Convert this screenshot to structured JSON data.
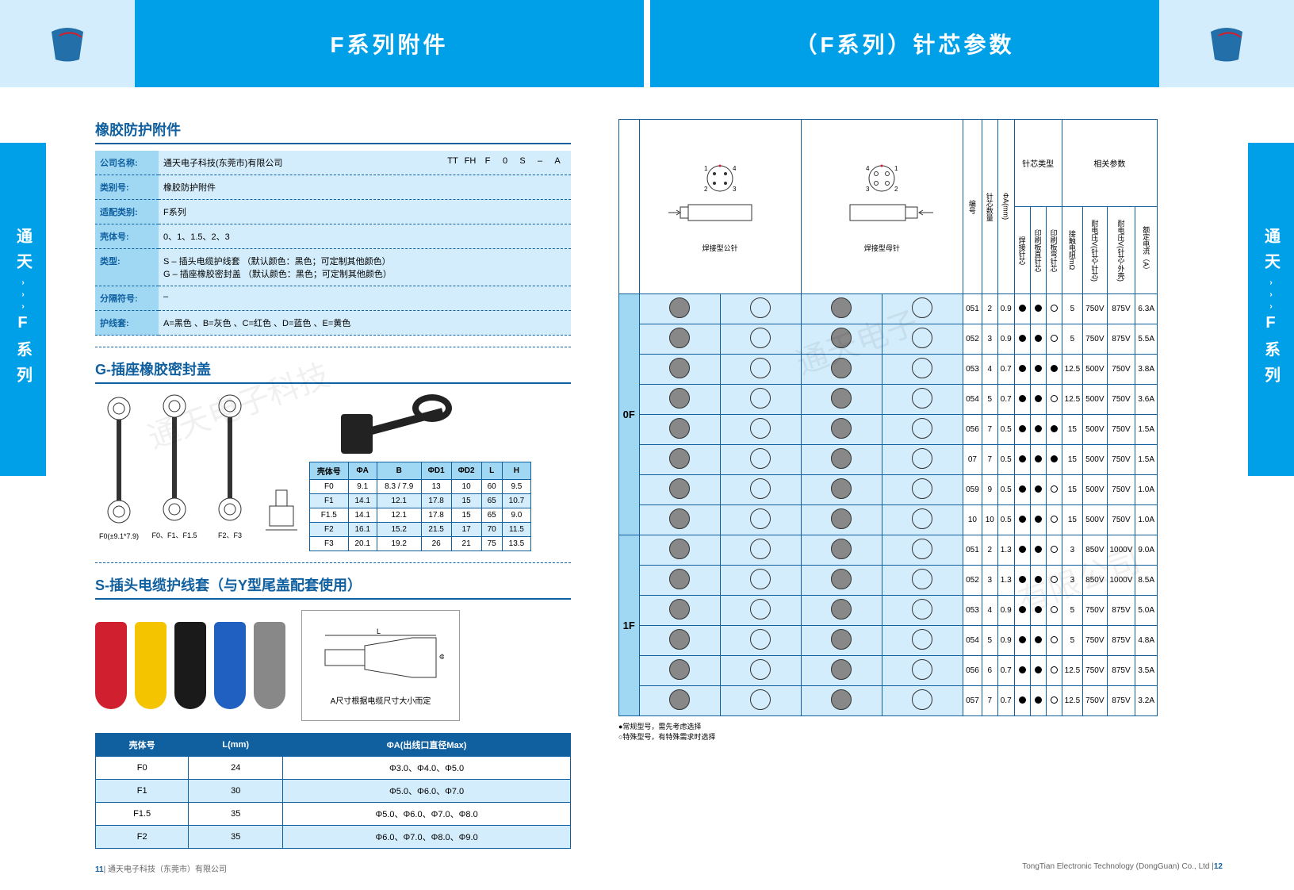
{
  "header": {
    "title_left": "F系列附件",
    "title_right": "（F系列）针芯参数"
  },
  "side_tab": "通天    F系列",
  "rubber_section": {
    "title": "橡胶防护附件",
    "code_strip": [
      "TT",
      "FH",
      "F",
      "0",
      "S",
      "–",
      "A"
    ],
    "rows": [
      {
        "label": "公司名称:",
        "value": "通天电子科技(东莞市)有限公司"
      },
      {
        "label": "类别号:",
        "value": "橡胶防护附件"
      },
      {
        "label": "适配类别:",
        "value": "F系列"
      },
      {
        "label": "壳体号:",
        "value": "0、1、1.5、2、3"
      },
      {
        "label": "类型:",
        "value": "S – 插头电缆护线套   （默认颜色：黑色；可定制其他颜色）\nG – 插座橡胶密封盖   （默认颜色：黑色；可定制其他颜色）"
      },
      {
        "label": "分隔符号:",
        "value": "–"
      },
      {
        "label": "护线套:",
        "value": "A=黑色 、B=灰色 、C=红色 、D=蓝色 、E=黄色"
      }
    ]
  },
  "g_section": {
    "title": "G-插座橡胶密封盖",
    "diag_labels": [
      "F0(±9.1*7.9)",
      "F0、F1、F1.5",
      "F2、F3"
    ],
    "table": {
      "headers": [
        "壳体号",
        "ΦA",
        "B",
        "ΦD1",
        "ΦD2",
        "L",
        "H"
      ],
      "rows": [
        [
          "F0",
          "9.1",
          "8.3 / 7.9",
          "13",
          "10",
          "60",
          "9.5"
        ],
        [
          "F1",
          "14.1",
          "12.1",
          "17.8",
          "15",
          "65",
          "10.7"
        ],
        [
          "F1.5",
          "14.1",
          "12.1",
          "17.8",
          "15",
          "65",
          "9.0"
        ],
        [
          "F2",
          "16.1",
          "15.2",
          "21.5",
          "17",
          "70",
          "11.5"
        ],
        [
          "F3",
          "20.1",
          "19.2",
          "26",
          "21",
          "75",
          "13.5"
        ]
      ]
    }
  },
  "s_section": {
    "title": "S-插头电缆护线套（与Y型尾盖配套使用）",
    "sleeve_colors": [
      "#d02030",
      "#f5c400",
      "#1a1a1a",
      "#2060c0",
      "#888888"
    ],
    "diag_note": "A尺寸根据电缆尺寸大小而定",
    "table": {
      "headers": [
        "壳体号",
        "L(mm)",
        "ΦA(出线口直径Max)"
      ],
      "rows": [
        [
          "F0",
          "24",
          "Φ3.0、Φ4.0、Φ5.0"
        ],
        [
          "F1",
          "30",
          "Φ5.0、Φ6.0、Φ7.0"
        ],
        [
          "F1.5",
          "35",
          "Φ5.0、Φ6.0、Φ7.0、Φ8.0"
        ],
        [
          "F2",
          "35",
          "Φ6.0、Φ7.0、Φ8.0、Φ9.0"
        ]
      ]
    }
  },
  "pin_section": {
    "diag_left_label": "焊接型公针",
    "diag_right_label": "焊接型母针",
    "group_headers": [
      "针芯类型",
      "相关参数"
    ],
    "col_headers": [
      "编号",
      "针芯数量",
      "ΦA(mm)",
      "焊接针芯",
      "印刷板直针芯",
      "印刷板弯针芯",
      "接触电阻mΩ",
      "耐电压V(针芯-针芯)",
      "耐电压V(针芯-外壳)",
      "额定电流（A）"
    ],
    "groups": [
      {
        "code": "0F",
        "rows": [
          {
            "id": "051",
            "count": "2",
            "phi": "0.9",
            "types": [
              "f",
              "f",
              "h"
            ],
            "params": [
              "5",
              "750V",
              "875V",
              "6.3A"
            ]
          },
          {
            "id": "052",
            "count": "3",
            "phi": "0.9",
            "types": [
              "f",
              "f",
              "h"
            ],
            "params": [
              "5",
              "750V",
              "875V",
              "5.5A"
            ]
          },
          {
            "id": "053",
            "count": "4",
            "phi": "0.7",
            "types": [
              "f",
              "f",
              "f"
            ],
            "params": [
              "12.5",
              "500V",
              "750V",
              "3.8A"
            ]
          },
          {
            "id": "054",
            "count": "5",
            "phi": "0.7",
            "types": [
              "f",
              "f",
              "h"
            ],
            "params": [
              "12.5",
              "500V",
              "750V",
              "3.6A"
            ]
          },
          {
            "id": "056",
            "count": "7",
            "phi": "0.5",
            "types": [
              "f",
              "f",
              "f"
            ],
            "params": [
              "15",
              "500V",
              "750V",
              "1.5A"
            ]
          },
          {
            "id": "07",
            "count": "7",
            "phi": "0.5",
            "types": [
              "f",
              "f",
              "f"
            ],
            "params": [
              "15",
              "500V",
              "750V",
              "1.5A"
            ]
          },
          {
            "id": "059",
            "count": "9",
            "phi": "0.5",
            "types": [
              "f",
              "f",
              "h"
            ],
            "params": [
              "15",
              "500V",
              "750V",
              "1.0A"
            ]
          },
          {
            "id": "10",
            "count": "10",
            "phi": "0.5",
            "types": [
              "f",
              "f",
              "h"
            ],
            "params": [
              "15",
              "500V",
              "750V",
              "1.0A"
            ]
          }
        ]
      },
      {
        "code": "1F",
        "rows": [
          {
            "id": "051",
            "count": "2",
            "phi": "1.3",
            "types": [
              "f",
              "f",
              "h"
            ],
            "params": [
              "3",
              "850V",
              "1000V",
              "9.0A"
            ]
          },
          {
            "id": "052",
            "count": "3",
            "phi": "1.3",
            "types": [
              "f",
              "f",
              "h"
            ],
            "params": [
              "3",
              "850V",
              "1000V",
              "8.5A"
            ]
          },
          {
            "id": "053",
            "count": "4",
            "phi": "0.9",
            "types": [
              "f",
              "f",
              "h"
            ],
            "params": [
              "5",
              "750V",
              "875V",
              "5.0A"
            ]
          },
          {
            "id": "054",
            "count": "5",
            "phi": "0.9",
            "types": [
              "f",
              "f",
              "h"
            ],
            "params": [
              "5",
              "750V",
              "875V",
              "4.8A"
            ]
          },
          {
            "id": "056",
            "count": "6",
            "phi": "0.7",
            "types": [
              "f",
              "f",
              "h"
            ],
            "params": [
              "12.5",
              "750V",
              "875V",
              "3.5A"
            ]
          },
          {
            "id": "057",
            "count": "7",
            "phi": "0.7",
            "types": [
              "f",
              "f",
              "h"
            ],
            "params": [
              "12.5",
              "750V",
              "875V",
              "3.2A"
            ]
          }
        ]
      }
    ],
    "legend": [
      "●常规型号，需先考虑选择",
      "○特殊型号，有特殊需求时选择"
    ]
  },
  "footer": {
    "left_page": "11",
    "left_text": "通天电子科技（东莞市）有限公司",
    "right_text": "TongTian Electronic Technology (DongGuan) Co., Ltd",
    "right_page": "12"
  },
  "colors": {
    "primary": "#00a0e9",
    "light_blue": "#d4edfc",
    "mid_blue": "#a0d8f4",
    "dark_blue": "#1060a0"
  }
}
